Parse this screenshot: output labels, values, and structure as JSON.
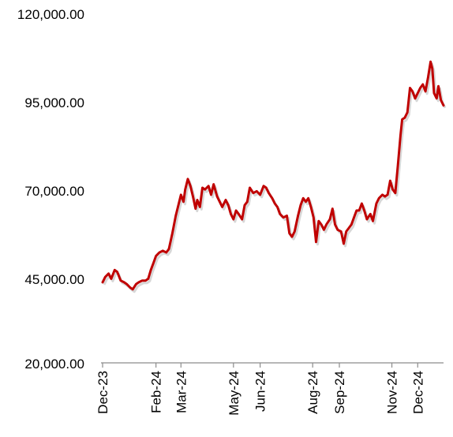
{
  "chart_data": {
    "type": "line",
    "title": "",
    "xlabel": "",
    "ylabel": "",
    "ylim": [
      20000,
      120000
    ],
    "yticks": [
      20000,
      45000,
      70000,
      95000,
      120000
    ],
    "ytick_labels": [
      "20,000.00",
      "45,000.00",
      "70,000.00",
      "95,000.00",
      "120,000.00"
    ],
    "xlim": [
      "2023-12-01",
      "2024-12-31"
    ],
    "xticks": [
      "2023-12-01",
      "2024-02-01",
      "2024-03-01",
      "2024-05-01",
      "2024-06-01",
      "2024-08-01",
      "2024-09-01",
      "2024-11-01",
      "2024-12-01"
    ],
    "xtick_labels": [
      "Dec-23",
      "Feb-24",
      "Mar-24",
      "May-24",
      "Jun-24",
      "Aug-24",
      "Sep-24",
      "Nov-24",
      "Dec-24"
    ],
    "grid": false,
    "legend": "none",
    "series": [
      {
        "color": "#c00000",
        "points": [
          [
            "2023-12-01",
            43000
          ],
          [
            "2023-12-04",
            44500
          ],
          [
            "2023-12-08",
            45500
          ],
          [
            "2023-12-11",
            44000
          ],
          [
            "2023-12-15",
            46500
          ],
          [
            "2023-12-18",
            46000
          ],
          [
            "2023-12-22",
            43500
          ],
          [
            "2023-12-26",
            43000
          ],
          [
            "2023-12-29",
            42500
          ],
          [
            "2024-01-02",
            41500
          ],
          [
            "2024-01-05",
            41000
          ],
          [
            "2024-01-09",
            42500
          ],
          [
            "2024-01-12",
            43000
          ],
          [
            "2024-01-16",
            43500
          ],
          [
            "2024-01-20",
            43500
          ],
          [
            "2024-01-23",
            44000
          ],
          [
            "2024-01-26",
            46500
          ],
          [
            "2024-01-29",
            48500
          ],
          [
            "2024-02-01",
            50500
          ],
          [
            "2024-02-05",
            51500
          ],
          [
            "2024-02-09",
            52000
          ],
          [
            "2024-02-13",
            51500
          ],
          [
            "2024-02-16",
            52500
          ],
          [
            "2024-02-20",
            57000
          ],
          [
            "2024-02-24",
            62000
          ],
          [
            "2024-02-27",
            65000
          ],
          [
            "2024-03-01",
            68000
          ],
          [
            "2024-03-04",
            66000
          ],
          [
            "2024-03-06",
            69500
          ],
          [
            "2024-03-09",
            72500
          ],
          [
            "2024-03-12",
            70500
          ],
          [
            "2024-03-15",
            67500
          ],
          [
            "2024-03-18",
            64000
          ],
          [
            "2024-03-20",
            66500
          ],
          [
            "2024-03-23",
            64500
          ],
          [
            "2024-03-26",
            70000
          ],
          [
            "2024-03-29",
            69500
          ],
          [
            "2024-04-02",
            70500
          ],
          [
            "2024-04-05",
            68000
          ],
          [
            "2024-04-08",
            71000
          ],
          [
            "2024-04-12",
            67500
          ],
          [
            "2024-04-15",
            66000
          ],
          [
            "2024-04-18",
            64500
          ],
          [
            "2024-04-22",
            66500
          ],
          [
            "2024-04-25",
            65000
          ],
          [
            "2024-04-28",
            62500
          ],
          [
            "2024-05-01",
            61000
          ],
          [
            "2024-05-04",
            63500
          ],
          [
            "2024-05-07",
            62500
          ],
          [
            "2024-05-11",
            61000
          ],
          [
            "2024-05-14",
            65000
          ],
          [
            "2024-05-17",
            66000
          ],
          [
            "2024-05-20",
            70000
          ],
          [
            "2024-05-24",
            68500
          ],
          [
            "2024-05-28",
            69000
          ],
          [
            "2024-06-01",
            68000
          ],
          [
            "2024-06-05",
            70500
          ],
          [
            "2024-06-08",
            70000
          ],
          [
            "2024-06-11",
            68500
          ],
          [
            "2024-06-15",
            67000
          ],
          [
            "2024-06-18",
            65500
          ],
          [
            "2024-06-21",
            64500
          ],
          [
            "2024-06-24",
            62500
          ],
          [
            "2024-06-28",
            61500
          ],
          [
            "2024-07-02",
            62000
          ],
          [
            "2024-07-05",
            57000
          ],
          [
            "2024-07-08",
            56000
          ],
          [
            "2024-07-11",
            57500
          ],
          [
            "2024-07-15",
            62000
          ],
          [
            "2024-07-18",
            65000
          ],
          [
            "2024-07-21",
            67000
          ],
          [
            "2024-07-24",
            66000
          ],
          [
            "2024-07-27",
            67000
          ],
          [
            "2024-07-30",
            64500
          ],
          [
            "2024-08-02",
            61500
          ],
          [
            "2024-08-05",
            54500
          ],
          [
            "2024-08-08",
            60500
          ],
          [
            "2024-08-11",
            59500
          ],
          [
            "2024-08-14",
            58000
          ],
          [
            "2024-08-17",
            59500
          ],
          [
            "2024-08-21",
            61000
          ],
          [
            "2024-08-24",
            64000
          ],
          [
            "2024-08-27",
            59500
          ],
          [
            "2024-08-30",
            58000
          ],
          [
            "2024-09-03",
            57500
          ],
          [
            "2024-09-06",
            54000
          ],
          [
            "2024-09-09",
            57500
          ],
          [
            "2024-09-12",
            58500
          ],
          [
            "2024-09-15",
            59500
          ],
          [
            "2024-09-18",
            61500
          ],
          [
            "2024-09-21",
            63500
          ],
          [
            "2024-09-24",
            63500
          ],
          [
            "2024-09-27",
            65500
          ],
          [
            "2024-09-30",
            63500
          ],
          [
            "2024-10-03",
            61000
          ],
          [
            "2024-10-07",
            62500
          ],
          [
            "2024-10-10",
            60500
          ],
          [
            "2024-10-14",
            65500
          ],
          [
            "2024-10-17",
            67000
          ],
          [
            "2024-10-21",
            68000
          ],
          [
            "2024-10-24",
            67500
          ],
          [
            "2024-10-27",
            68000
          ],
          [
            "2024-10-30",
            72000
          ],
          [
            "2024-11-02",
            69500
          ],
          [
            "2024-11-05",
            68500
          ],
          [
            "2024-11-08",
            76500
          ],
          [
            "2024-11-11",
            85000
          ],
          [
            "2024-11-13",
            89500
          ],
          [
            "2024-11-16",
            90000
          ],
          [
            "2024-11-19",
            91500
          ],
          [
            "2024-11-22",
            98500
          ],
          [
            "2024-11-25",
            97500
          ],
          [
            "2024-11-28",
            95500
          ],
          [
            "2024-12-01",
            97000
          ],
          [
            "2024-12-04",
            98500
          ],
          [
            "2024-12-07",
            99500
          ],
          [
            "2024-12-10",
            97500
          ],
          [
            "2024-12-13",
            101500
          ],
          [
            "2024-12-16",
            106000
          ],
          [
            "2024-12-18",
            104000
          ],
          [
            "2024-12-20",
            97000
          ],
          [
            "2024-12-23",
            95500
          ],
          [
            "2024-12-25",
            99000
          ],
          [
            "2024-12-28",
            95000
          ],
          [
            "2024-12-31",
            93500
          ]
        ]
      }
    ]
  }
}
